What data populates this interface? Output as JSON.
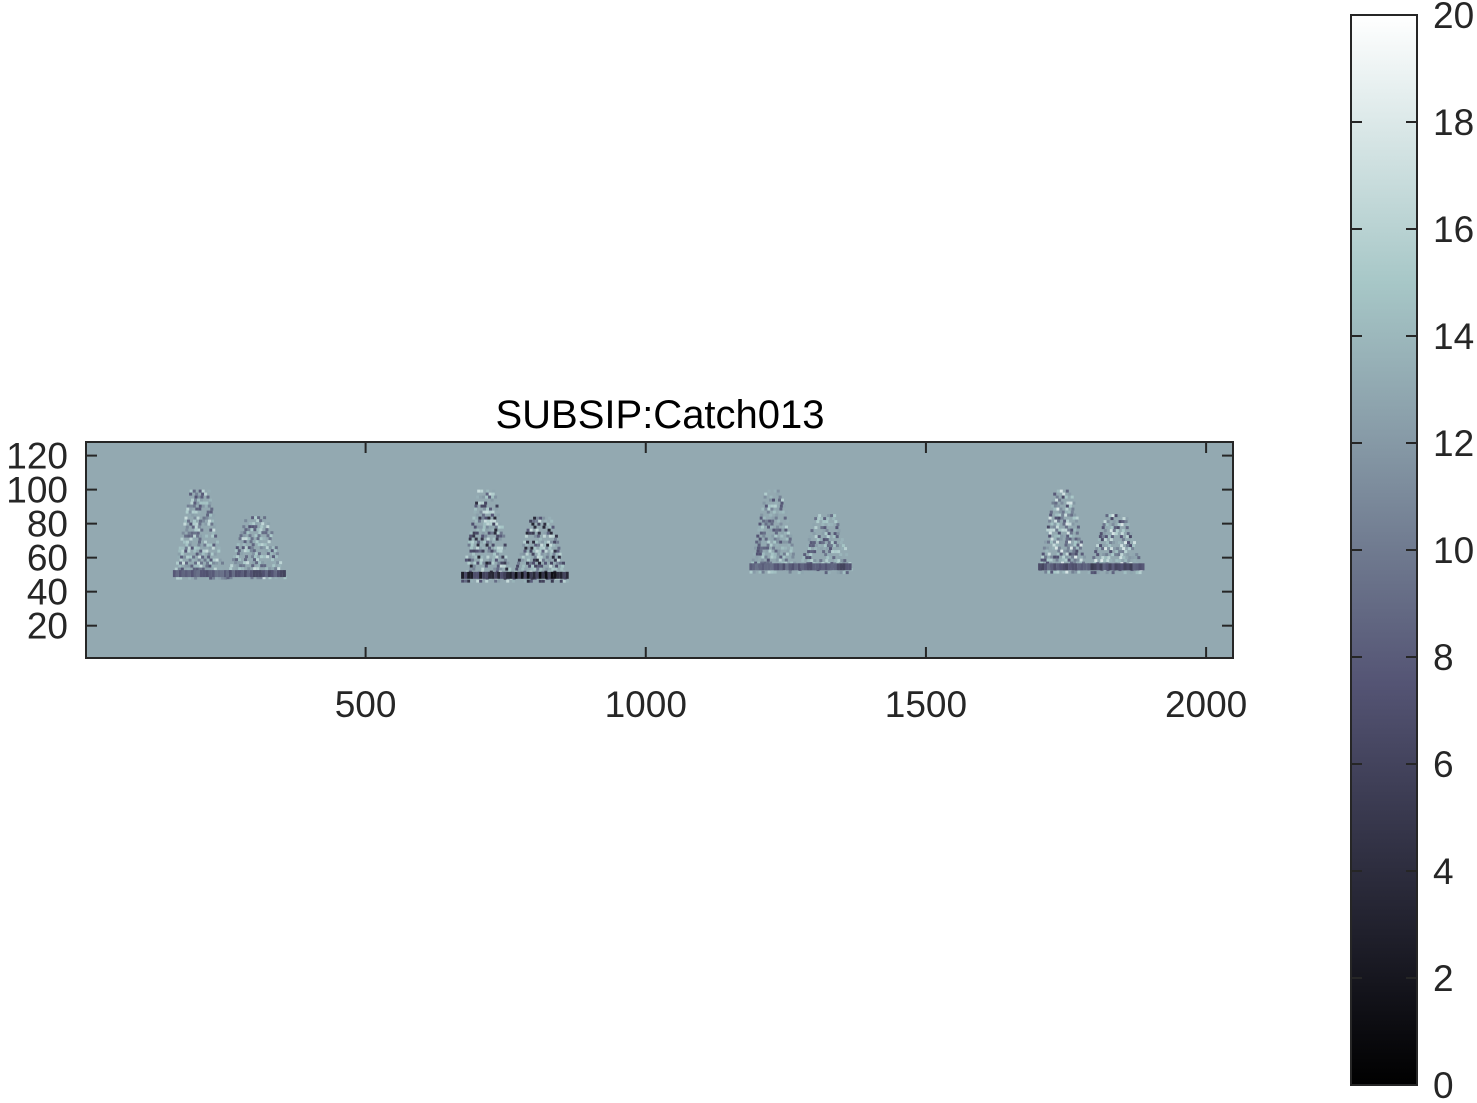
{
  "chart_data": {
    "type": "heatmap",
    "title": "SUBSIP:Catch013",
    "xlabel": "",
    "ylabel": "",
    "xlim": [
      1,
      2048
    ],
    "ylim": [
      1,
      128
    ],
    "x_ticks": [
      500,
      1000,
      1500,
      2000
    ],
    "y_ticks": [
      20,
      40,
      60,
      80,
      100,
      120
    ],
    "colormap": "bone",
    "background_value": 12.4,
    "color_limits": [
      0,
      20
    ],
    "colorbar": {
      "placement": "right",
      "ticks": [
        0,
        2,
        4,
        6,
        8,
        10,
        12,
        14,
        16,
        18,
        20
      ]
    },
    "events": [
      {
        "x_start": 145,
        "x_end": 365,
        "y_min": 48,
        "y_max": 100,
        "bright_max": 17,
        "dark_min": 6
      },
      {
        "x_start": 660,
        "x_end": 870,
        "y_min": 47,
        "y_max": 100,
        "bright_max": 17,
        "dark_min": 1
      },
      {
        "x_start": 1175,
        "x_end": 1375,
        "y_min": 52,
        "y_max": 100,
        "bright_max": 16,
        "dark_min": 6
      },
      {
        "x_start": 1690,
        "x_end": 1895,
        "y_min": 52,
        "y_max": 100,
        "bright_max": 18,
        "dark_min": 5
      }
    ]
  }
}
